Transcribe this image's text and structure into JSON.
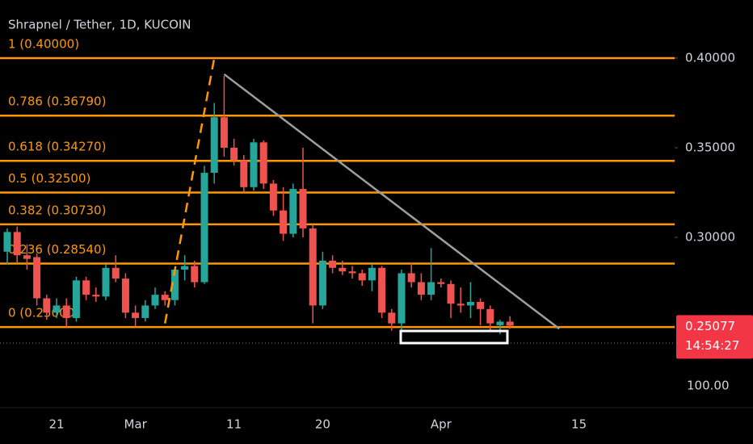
{
  "chart_data": {
    "type": "candlestick",
    "title": "Shrapnel / Tether, 1D, KUCOIN",
    "up_color": "#26a69a",
    "down_color": "#ef5350",
    "x": [
      "Feb 16",
      "Feb 17",
      "Feb 18",
      "Feb 19",
      "Feb 20",
      "Feb 21",
      "Feb 22",
      "Feb 23",
      "Feb 24",
      "Feb 25",
      "Feb 26",
      "Feb 27",
      "Feb 28",
      "Mar 1",
      "Mar 2",
      "Mar 3",
      "Mar 4",
      "Mar 5",
      "Mar 6",
      "Mar 7",
      "Mar 8",
      "Mar 9",
      "Mar 10",
      "Mar 11",
      "Mar 12",
      "Mar 13",
      "Mar 14",
      "Mar 15",
      "Mar 16",
      "Mar 17",
      "Mar 18",
      "Mar 19",
      "Mar 20",
      "Mar 21",
      "Mar 22",
      "Mar 23",
      "Mar 24",
      "Mar 25",
      "Mar 26",
      "Mar 27",
      "Mar 28",
      "Mar 29",
      "Mar 30",
      "Mar 31",
      "Apr 1",
      "Apr 2",
      "Apr 3",
      "Apr 4",
      "Apr 5",
      "Apr 6",
      "Apr 7",
      "Apr 8"
    ],
    "open": [
      0.292,
      0.303,
      0.29,
      0.289,
      0.266,
      0.258,
      0.262,
      0.255,
      0.276,
      0.268,
      0.267,
      0.283,
      0.277,
      0.258,
      0.255,
      0.262,
      0.268,
      0.265,
      0.282,
      0.284,
      0.275,
      0.336,
      0.367,
      0.35,
      0.343,
      0.328,
      0.353,
      0.33,
      0.315,
      0.302,
      0.327,
      0.305,
      0.262,
      0.287,
      0.283,
      0.281,
      0.28,
      0.276,
      0.283,
      0.258,
      0.252,
      0.28,
      0.275,
      0.268,
      0.275,
      0.274,
      0.263,
      0.262,
      0.264,
      0.26,
      0.251,
      0.253
    ],
    "high": [
      0.305,
      0.306,
      0.296,
      0.291,
      0.268,
      0.266,
      0.266,
      0.278,
      0.278,
      0.272,
      0.285,
      0.29,
      0.28,
      0.262,
      0.265,
      0.272,
      0.27,
      0.283,
      0.29,
      0.287,
      0.34,
      0.375,
      0.39,
      0.355,
      0.346,
      0.355,
      0.354,
      0.332,
      0.328,
      0.33,
      0.35,
      0.307,
      0.292,
      0.29,
      0.287,
      0.284,
      0.282,
      0.285,
      0.284,
      0.26,
      0.282,
      0.286,
      0.28,
      0.294,
      0.277,
      0.276,
      0.272,
      0.275,
      0.266,
      0.262,
      0.254,
      0.256
    ],
    "low": [
      0.285,
      0.286,
      0.282,
      0.262,
      0.254,
      0.255,
      0.25,
      0.253,
      0.265,
      0.264,
      0.265,
      0.275,
      0.255,
      0.25,
      0.253,
      0.26,
      0.262,
      0.262,
      0.276,
      0.272,
      0.274,
      0.33,
      0.345,
      0.34,
      0.325,
      0.326,
      0.327,
      0.312,
      0.298,
      0.3,
      0.3,
      0.252,
      0.26,
      0.28,
      0.279,
      0.277,
      0.273,
      0.27,
      0.255,
      0.248,
      0.248,
      0.272,
      0.265,
      0.265,
      0.272,
      0.255,
      0.258,
      0.255,
      0.251,
      0.248,
      0.246,
      0.249
    ],
    "close": [
      0.303,
      0.29,
      0.288,
      0.266,
      0.258,
      0.262,
      0.255,
      0.276,
      0.268,
      0.267,
      0.283,
      0.277,
      0.258,
      0.255,
      0.262,
      0.268,
      0.265,
      0.282,
      0.284,
      0.275,
      0.336,
      0.367,
      0.35,
      0.343,
      0.328,
      0.353,
      0.33,
      0.315,
      0.302,
      0.327,
      0.305,
      0.262,
      0.287,
      0.283,
      0.281,
      0.28,
      0.276,
      0.283,
      0.258,
      0.252,
      0.28,
      0.275,
      0.268,
      0.275,
      0.274,
      0.263,
      0.262,
      0.264,
      0.26,
      0.252,
      0.253,
      0.25077
    ],
    "ylim": [
      0.205,
      0.4324
    ],
    "yticks": [
      {
        "value": 0.4,
        "label": "0.40000"
      },
      {
        "value": 0.35,
        "label": "0.35000"
      },
      {
        "value": 0.3,
        "label": "0.30000"
      }
    ],
    "xticks": [
      {
        "value": "Feb 21",
        "label": "21"
      },
      {
        "value": "Mar 1",
        "label": "Mar"
      },
      {
        "value": "Mar 11",
        "label": "11"
      },
      {
        "value": "Mar 20",
        "label": "20"
      },
      {
        "value": "Apr 1",
        "label": "Apr"
      },
      {
        "value": "Apr 15",
        "label": "15"
      }
    ],
    "fib_color": "#ff9800",
    "fib_levels": [
      {
        "value": 0.4,
        "label": "1 (0.40000)"
      },
      {
        "value": 0.3679,
        "label": "0.786 (0.36790)"
      },
      {
        "value": 0.3427,
        "label": "0.618 (0.34270)"
      },
      {
        "value": 0.325,
        "label": "0.5 (0.32500)"
      },
      {
        "value": 0.3073,
        "label": "0.382 (0.30730)"
      },
      {
        "value": 0.2854,
        "label": "0.236 (0.28540)"
      },
      {
        "value": 0.25,
        "label": "0 (0.25000)"
      }
    ],
    "trendline": {
      "color": "#9e9e9e",
      "x": [
        "Mar 10",
        "Apr 13"
      ],
      "y": [
        0.391,
        0.249
      ]
    },
    "fib_anchor_line": {
      "color": "#ff9800",
      "x": [
        "Mar 4",
        "Mar 9"
      ],
      "y": [
        0.252,
        0.4
      ]
    },
    "last_price": {
      "value": 0.25077,
      "label": "0.25077",
      "countdown": "14:54:27"
    },
    "volume_axis_label": "100.00"
  }
}
